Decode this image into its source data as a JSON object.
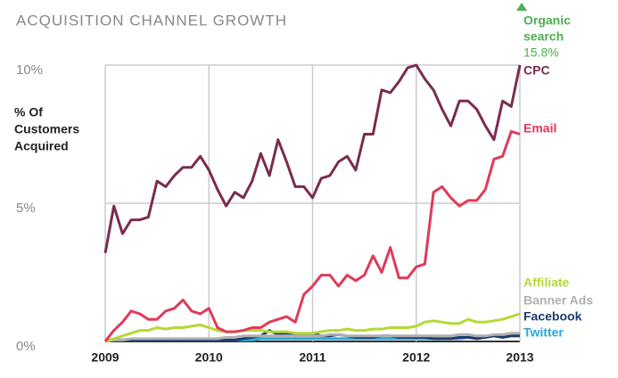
{
  "chart_data": {
    "type": "line",
    "title": "ACQUISITION CHANNEL GROWTH",
    "y_label_lines": [
      "% Of",
      "Customers",
      "Acquired"
    ],
    "categories": [
      "2009",
      null,
      null,
      null,
      null,
      null,
      null,
      null,
      null,
      null,
      null,
      null,
      "2010",
      null,
      null,
      null,
      null,
      null,
      null,
      null,
      null,
      null,
      null,
      null,
      "2011",
      null,
      null,
      null,
      null,
      null,
      null,
      null,
      null,
      null,
      null,
      null,
      "2012",
      null,
      null,
      null,
      null,
      null,
      null,
      null,
      null,
      null,
      null,
      null,
      "2013"
    ],
    "ylim": [
      0,
      10
    ],
    "yticks": [
      {
        "value": 0,
        "label": "0%"
      },
      {
        "value": 5,
        "label": "5%"
      },
      {
        "value": 10,
        "label": "10%"
      }
    ],
    "grid": true,
    "annotation": {
      "label_lines": [
        "Organic",
        "search"
      ],
      "value": 15.8,
      "value_label": "15.8%",
      "color": "#4caf50"
    },
    "series": [
      {
        "name": "CPC",
        "color": "#7a2c4e",
        "values": [
          3.2,
          4.9,
          3.9,
          4.4,
          4.4,
          4.5,
          5.8,
          5.6,
          6.0,
          6.3,
          6.3,
          6.7,
          6.2,
          5.5,
          4.9,
          5.4,
          5.2,
          5.8,
          6.8,
          6.0,
          7.3,
          6.5,
          5.6,
          5.6,
          5.2,
          5.9,
          6.0,
          6.5,
          6.7,
          6.2,
          7.5,
          7.5,
          9.1,
          9.0,
          9.4,
          9.9,
          10.0,
          9.5,
          9.1,
          8.4,
          7.8,
          8.7,
          8.7,
          8.4,
          7.8,
          7.3,
          8.7,
          8.5,
          10.0
        ]
      },
      {
        "name": "Email",
        "color": "#e03a5a",
        "values": [
          0,
          0.4,
          0.7,
          1.1,
          1.0,
          0.8,
          0.8,
          1.1,
          1.2,
          1.5,
          1.1,
          1.0,
          1.2,
          0.5,
          0.35,
          0.35,
          0.4,
          0.5,
          0.5,
          0.7,
          0.8,
          0.9,
          0.7,
          1.7,
          2.0,
          2.4,
          2.4,
          2.0,
          2.4,
          2.2,
          2.4,
          3.1,
          2.5,
          3.4,
          2.3,
          2.3,
          2.7,
          2.8,
          5.4,
          5.6,
          5.2,
          4.9,
          5.1,
          5.1,
          5.5,
          6.6,
          6.7,
          7.6,
          7.5
        ]
      },
      {
        "name": "Affiliate",
        "color": "#b5d936",
        "values": [
          0,
          0.1,
          0.2,
          0.3,
          0.4,
          0.4,
          0.5,
          0.45,
          0.5,
          0.5,
          0.55,
          0.6,
          0.5,
          0.4,
          0.35,
          0.35,
          0.4,
          0.4,
          0.4,
          0.35,
          0.35,
          0.35,
          0.3,
          0.3,
          0.3,
          0.35,
          0.4,
          0.4,
          0.45,
          0.4,
          0.4,
          0.45,
          0.45,
          0.5,
          0.5,
          0.5,
          0.55,
          0.7,
          0.75,
          0.7,
          0.65,
          0.65,
          0.8,
          0.7,
          0.7,
          0.75,
          0.8,
          0.9,
          1.0
        ]
      },
      {
        "name": "Banner Ads",
        "color": "#b0b0b0",
        "values": [
          0,
          0.05,
          0.05,
          0.1,
          0.1,
          0.1,
          0.1,
          0.1,
          0.1,
          0.1,
          0.1,
          0.1,
          0.1,
          0.1,
          0.15,
          0.15,
          0.2,
          0.2,
          0.2,
          0.2,
          0.2,
          0.2,
          0.2,
          0.2,
          0.2,
          0.2,
          0.25,
          0.25,
          0.2,
          0.2,
          0.2,
          0.2,
          0.2,
          0.2,
          0.2,
          0.2,
          0.2,
          0.2,
          0.2,
          0.2,
          0.2,
          0.25,
          0.25,
          0.2,
          0.2,
          0.25,
          0.25,
          0.3,
          0.3
        ]
      },
      {
        "name": "Facebook",
        "color": "#1f3a6e",
        "values": [
          0.05,
          0.05,
          0.05,
          0.05,
          0.05,
          0.05,
          0.05,
          0.05,
          0.05,
          0.05,
          0.05,
          0.05,
          0.05,
          0.05,
          0.05,
          0.05,
          0.1,
          0.15,
          0.2,
          0.4,
          0.25,
          0.3,
          0.2,
          0.25,
          0.3,
          0.2,
          0.2,
          0.25,
          0.2,
          0.15,
          0.15,
          0.15,
          0.2,
          0.2,
          0.15,
          0.15,
          0.15,
          0.15,
          0.1,
          0.1,
          0.1,
          0.15,
          0.15,
          0.1,
          0.15,
          0.2,
          0.15,
          0.2,
          0.2
        ]
      },
      {
        "name": "Twitter",
        "color": "#2aa7d9",
        "values": [
          0.05,
          0.05,
          0.05,
          0.05,
          0.05,
          0.05,
          0.05,
          0.05,
          0.05,
          0.05,
          0.05,
          0.05,
          0.05,
          0.05,
          0.05,
          0.05,
          0.05,
          0.05,
          0.1,
          0.1,
          0.1,
          0.1,
          0.1,
          0.1,
          0.1,
          0.1,
          0.1,
          0.1,
          0.1,
          0.1,
          0.1,
          0.1,
          0.1,
          0.1,
          0.1,
          0.1,
          0.1,
          0.1,
          0.1,
          0.1,
          0.1,
          0.1,
          0.15,
          0.15,
          0.15,
          0.2,
          0.15,
          0.2,
          0.2
        ]
      }
    ]
  }
}
